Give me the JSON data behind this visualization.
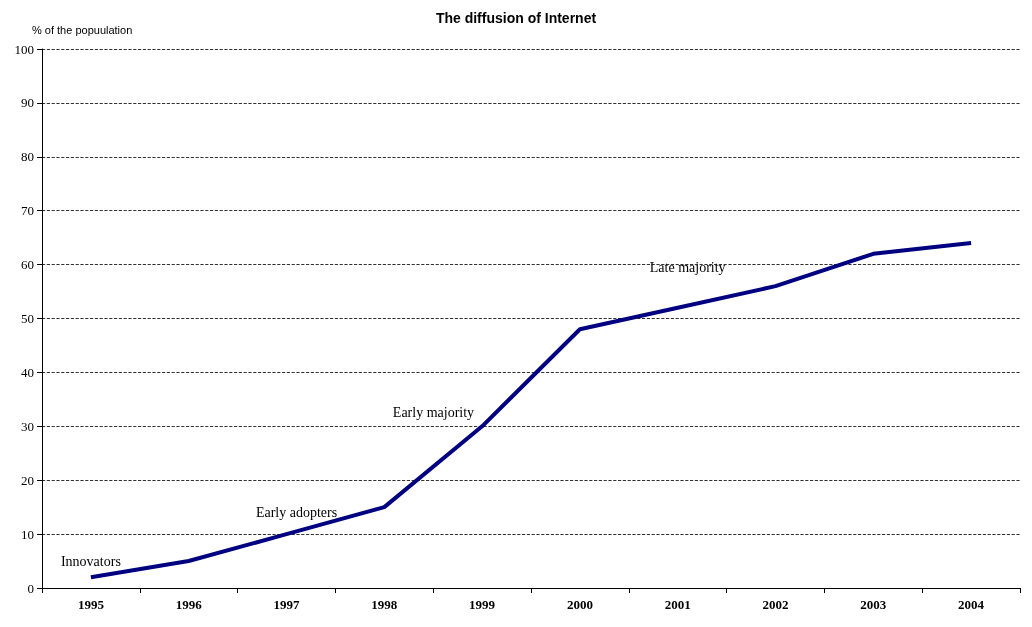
{
  "chart_data": {
    "type": "line",
    "title": "The diffusion of Internet",
    "ylabel": "% of the popuulation",
    "categories": [
      "1995",
      "1996",
      "1997",
      "1998",
      "1999",
      "2000",
      "2001",
      "2002",
      "2003",
      "2004"
    ],
    "series": [
      {
        "color": "#000080",
        "values": [
          2,
          5,
          10,
          15,
          30,
          48,
          52,
          56,
          62,
          64
        ]
      }
    ],
    "ylim": [
      0,
      100
    ],
    "yticks": [
      0,
      10,
      20,
      30,
      40,
      50,
      60,
      70,
      80,
      90,
      100
    ],
    "grid": "y",
    "marker": "none",
    "line_style": "solid",
    "annotations": [
      "Innovators",
      "Early adopters",
      "Early majority",
      "Late majority"
    ]
  }
}
